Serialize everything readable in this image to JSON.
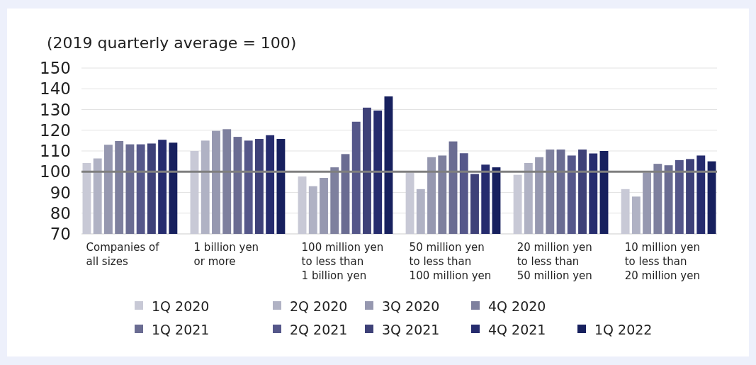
{
  "chart_data": {
    "type": "bar",
    "title": "(2019 quarterly average = 100)",
    "categories": [
      "Companies of\nall sizes",
      "1 billion yen\nor more",
      "100 million yen\nto less than\n1 billion yen",
      "50 million yen\nto less than\n100 million yen",
      "20 million yen\nto less than\n50 million yen",
      "10 million yen\nto less than\n20 million yen"
    ],
    "series": [
      {
        "name": "1Q 2020",
        "color": "#c8c9d6",
        "values": [
          104.2,
          110,
          97.7,
          99.6,
          98.5,
          91.6
        ]
      },
      {
        "name": "2Q 2020",
        "color": "#b0b2c4",
        "values": [
          106.4,
          115,
          93,
          91.6,
          104.2,
          88
        ]
      },
      {
        "name": "3Q 2020",
        "color": "#9698b0",
        "values": [
          113,
          119.7,
          97,
          107,
          107,
          99.6
        ]
      },
      {
        "name": "4Q 2020",
        "color": "#7e809e",
        "values": [
          114.8,
          120.5,
          102.1,
          107.8,
          110.7,
          103.8
        ]
      },
      {
        "name": "1Q 2021",
        "color": "#6a6c92",
        "values": [
          113.2,
          116.8,
          108.5,
          114.6,
          110.7,
          103.1
        ]
      },
      {
        "name": "2Q 2021",
        "color": "#55578a",
        "values": [
          113.2,
          115,
          124.1,
          108.9,
          107.8,
          105.6
        ]
      },
      {
        "name": "3Q 2021",
        "color": "#3e4178",
        "values": [
          113.6,
          115.8,
          130.9,
          98.9,
          110.7,
          106.1
        ]
      },
      {
        "name": "4Q 2021",
        "color": "#262c6e",
        "values": [
          115.4,
          117.6,
          129.5,
          103.4,
          108.8,
          107.8
        ]
      },
      {
        "name": "1Q 2022",
        "color": "#17205e",
        "values": [
          114,
          115.8,
          136.3,
          102.1,
          110,
          105
        ]
      }
    ],
    "ylim": [
      70,
      150
    ],
    "yticks": [
      70,
      80,
      90,
      100,
      110,
      120,
      130,
      140,
      150
    ],
    "grid": "y",
    "legend": "bottom",
    "ref_lines": [
      {
        "axis": "y",
        "value": 100,
        "color": "#7f7f7f"
      }
    ]
  }
}
